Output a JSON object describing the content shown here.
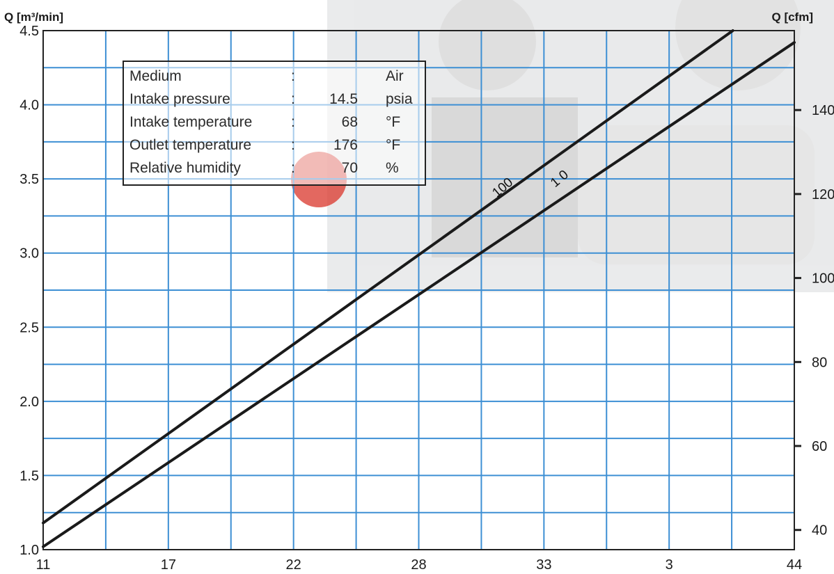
{
  "chart_data": {
    "type": "line",
    "y_axis_left": {
      "label": "Q [m³/min]",
      "ticks": [
        "1.0",
        "1.5",
        "2.0",
        "2.5",
        "3.0",
        "3.5",
        "4.0",
        "4.5"
      ],
      "range": [
        1.0,
        4.5
      ]
    },
    "y_axis_right": {
      "label": "Q [cfm]",
      "ticks": [
        "40",
        "60",
        "80",
        "100",
        "120",
        "140"
      ]
    },
    "x_axis": {
      "ticks": [
        "11",
        "17",
        "22",
        "28",
        "33",
        "3",
        "44"
      ],
      "range": [
        11,
        44
      ]
    },
    "grid": true,
    "series": [
      {
        "name": "100",
        "points": [
          [
            11.0,
            1.18
          ],
          [
            41.3,
            4.5
          ]
        ]
      },
      {
        "name": "1 0",
        "points": [
          [
            11.0,
            1.02
          ],
          [
            44.0,
            4.42
          ]
        ]
      }
    ],
    "colors": {
      "grid": "#3d8fd4",
      "line": "#1a1a1a",
      "frame": "#222222"
    }
  },
  "conditions": [
    {
      "label": "Medium",
      "colon": ":",
      "value": "",
      "unit": "Air"
    },
    {
      "label": "Intake pressure",
      "colon": ":",
      "value": "14.5",
      "unit": "psia"
    },
    {
      "label": "Intake temperature",
      "colon": ":",
      "value": "68",
      "unit": "°F"
    },
    {
      "label": "Outlet temperature",
      "colon": ":",
      "value": "176",
      "unit": "°F"
    },
    {
      "label": "Relative humidity",
      "colon": ":",
      "value": "70",
      "unit": "%"
    }
  ]
}
